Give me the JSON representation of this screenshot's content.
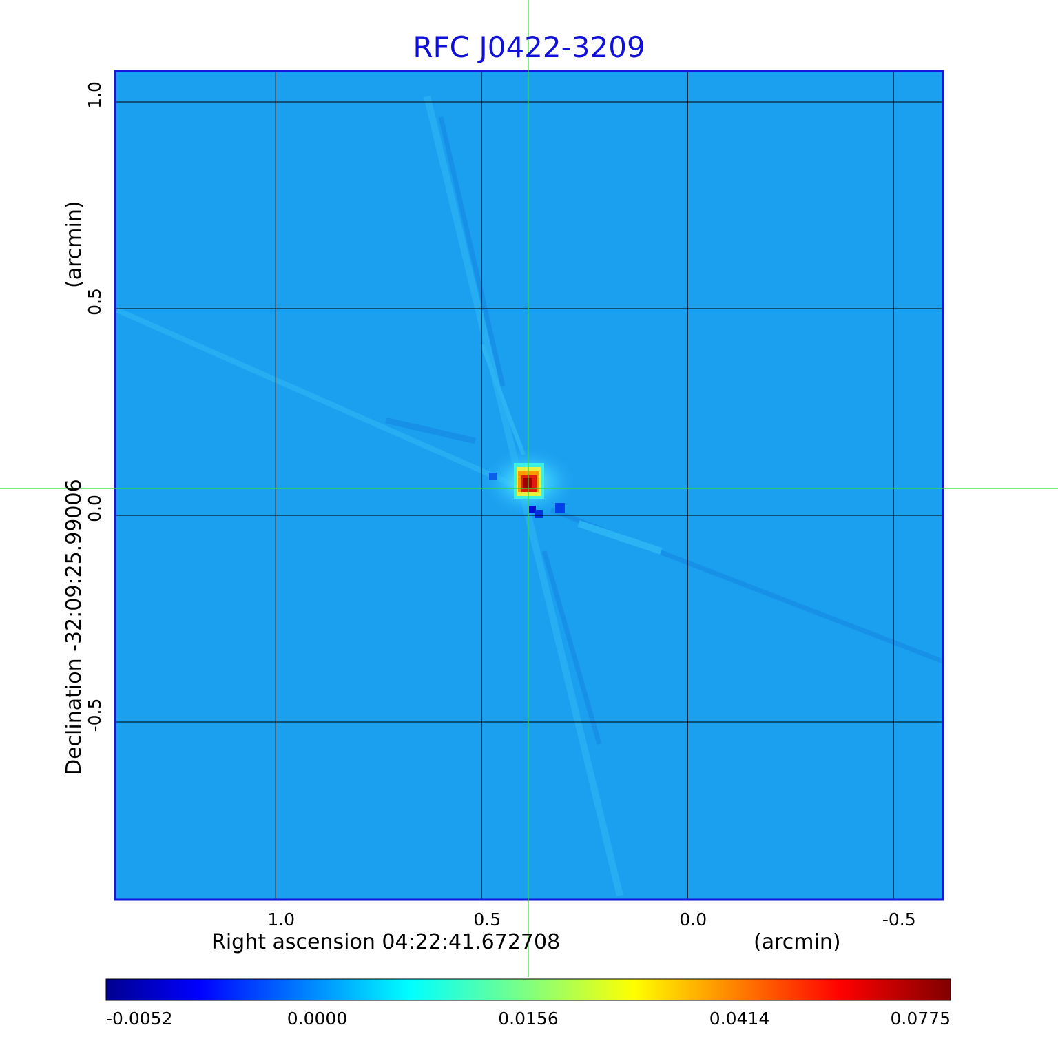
{
  "chart_data": {
    "type": "heatmap",
    "title": "RFC J0422-3209",
    "xlabel": "Right ascension  04:22:41.672708",
    "xunit": "(arcmin)",
    "ylabel": "Declination  -32:09:25.99006",
    "yunit": "(arcmin)",
    "x_ticks": [
      "1.0",
      "0.5",
      "0.0",
      "-0.5"
    ],
    "y_ticks": [
      "1.0",
      "0.5",
      "0.0",
      "-0.5"
    ],
    "x_tick_values": [
      1.0,
      0.5,
      0.0,
      -0.5
    ],
    "y_tick_values": [
      1.0,
      0.5,
      0.0,
      -0.5
    ],
    "xlim": [
      1.39,
      -0.62
    ],
    "ylim": [
      -0.93,
      1.075
    ],
    "grid": true,
    "crosshair": {
      "x": 0.385,
      "y": 0.065,
      "color": "#33dd33"
    },
    "peak": {
      "x": 0.385,
      "y": 0.065,
      "value": 0.0775
    },
    "colorbar": {
      "colormap": "jet",
      "ticks": [
        "-0.0052",
        "0.0000",
        "0.0156",
        "0.0414",
        "0.0775"
      ],
      "tick_values": [
        -0.0052,
        0.0,
        0.0156,
        0.0414,
        0.0775
      ]
    }
  },
  "colors": {
    "background_field": "#1ba0f0",
    "frame": "#1515dd",
    "grid": "#000000",
    "title": "#1010d8"
  }
}
